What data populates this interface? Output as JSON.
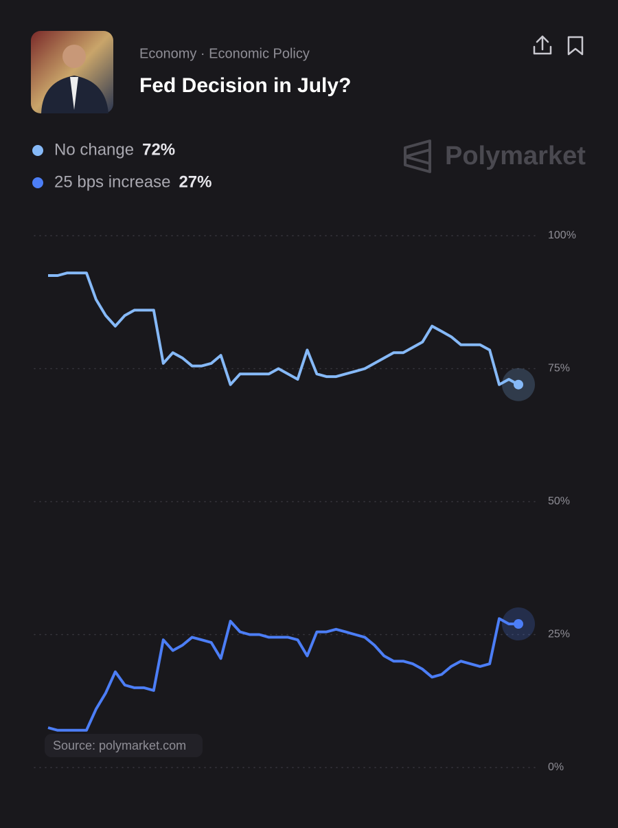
{
  "header": {
    "breadcrumb": "Economy · Economic Policy",
    "title": "Fed Decision in July?"
  },
  "watermark": "Polymarket",
  "source": "Source: polymarket.com",
  "chart_data": {
    "type": "line",
    "categories": [
      null,
      null,
      null,
      null,
      null,
      null,
      null,
      null,
      null,
      null,
      null,
      null,
      null,
      null,
      null,
      null,
      null,
      null,
      null,
      null,
      null,
      null,
      null,
      null,
      null,
      null,
      null,
      null,
      null,
      null,
      null,
      null,
      null,
      null,
      null,
      null,
      null,
      null,
      null,
      null,
      null,
      null,
      null,
      null,
      null,
      null,
      null,
      null,
      null,
      null
    ],
    "series": [
      {
        "name": "No change",
        "color": "#86b9f7",
        "current_label": "72%",
        "values": [
          92.5,
          92.5,
          93,
          93,
          93,
          88,
          85,
          83,
          85,
          86,
          86,
          86,
          76,
          78,
          77,
          75.5,
          75.5,
          76,
          77.5,
          72,
          74,
          74,
          74,
          74,
          75,
          74,
          73,
          78.5,
          74,
          73.5,
          73.5,
          74,
          74.5,
          75,
          76,
          77,
          78,
          78,
          79,
          80,
          83,
          82,
          81,
          79.5,
          79.5,
          79.5,
          78.5,
          72,
          73,
          72
        ]
      },
      {
        "name": "25 bps increase",
        "color": "#4c7ef6",
        "current_label": "27%",
        "values": [
          7.5,
          7,
          7,
          7,
          7,
          11,
          14,
          18,
          15.5,
          15,
          15,
          14.5,
          24,
          22,
          23,
          24.5,
          24,
          23.5,
          20.5,
          27.5,
          25.5,
          25,
          25,
          24.5,
          24.5,
          24.5,
          24,
          21,
          25.5,
          25.5,
          26,
          25.5,
          25,
          24.5,
          23,
          21,
          20,
          20,
          19.5,
          18.5,
          17,
          17.5,
          19,
          20,
          19.5,
          19,
          19.5,
          28,
          27,
          27
        ]
      }
    ],
    "ylim": [
      0,
      100
    ],
    "yticks": [
      {
        "value": 0,
        "label": "0%"
      },
      {
        "value": 25,
        "label": "25%"
      },
      {
        "value": 50,
        "label": "50%"
      },
      {
        "value": 75,
        "label": "75%"
      },
      {
        "value": 100,
        "label": "100%"
      }
    ],
    "grid": true
  }
}
